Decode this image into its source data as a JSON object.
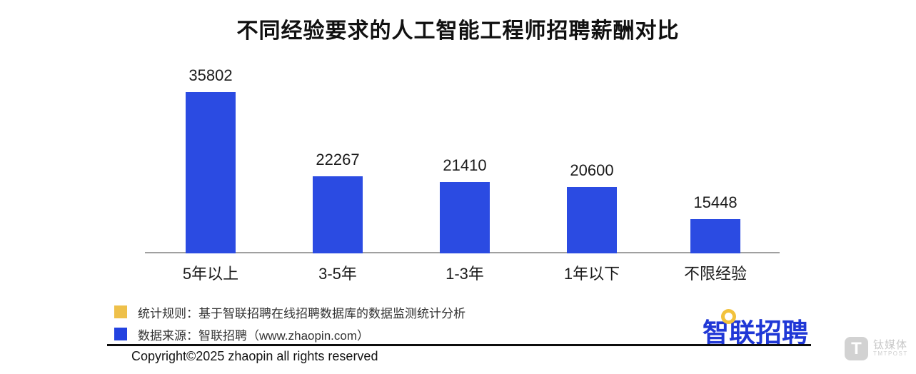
{
  "title": "不同经验要求的人工智能工程师招聘薪酬对比",
  "chart_data": {
    "type": "bar",
    "title": "不同经验要求的人工智能工程师招聘薪酬对比",
    "categories": [
      "5年以上",
      "3-5年",
      "1-3年",
      "1年以下",
      "不限经验"
    ],
    "values": [
      35802,
      22267,
      21410,
      20600,
      15448
    ],
    "xlabel": "",
    "ylabel": "",
    "ylim": [
      10000,
      36000
    ],
    "grid": false,
    "legend_position": "none",
    "data_labels": true,
    "bar_color": "#2b4be2",
    "axis_color": "#a0a0a0"
  },
  "notes": [
    {
      "swatch_color": "#eec04a",
      "text": "统计规则：基于智联招聘在线招聘数据库的数据监测统计分析"
    },
    {
      "swatch_color": "#2342e0",
      "text": "数据来源：智联招聘（www.zhaopin.com）"
    }
  ],
  "logo": {
    "text": "智联招聘",
    "ring_color": "#f2c23c",
    "text_color": "#2038d6"
  },
  "footer": {
    "copyright": "Copyright©2025 zhaopin all rights reserved"
  },
  "watermark": {
    "cn": "钛媒体",
    "en": "TMTPOST",
    "glyph": "T"
  }
}
